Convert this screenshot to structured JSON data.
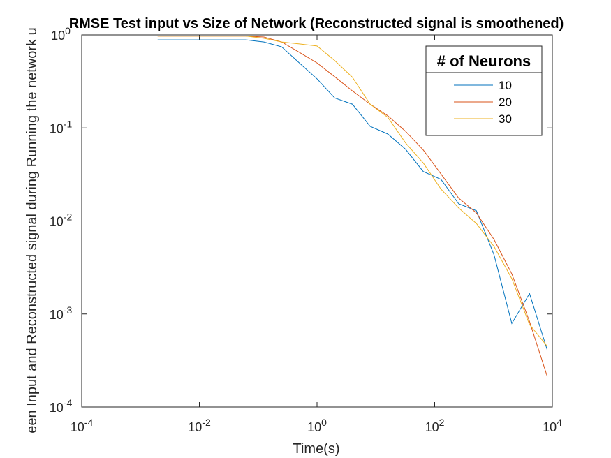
{
  "chart_data": {
    "type": "line",
    "title": "RMSE Test input vs Size of Network (Reconstructed signal is smoothened)",
    "xlabel": "Time(s)",
    "ylabel": "een Input and Reconstructed signal during Running the network u",
    "xscale": "log",
    "yscale": "log",
    "x": [
      0.001953125,
      0.00390625,
      0.0078125,
      0.015625,
      0.03125,
      0.0625,
      0.125,
      0.25,
      0.5,
      1,
      2,
      4,
      8,
      16,
      32,
      64,
      128,
      256,
      512,
      1024,
      2048,
      4096,
      8192
    ],
    "series": [
      {
        "name": "10",
        "color": "#0072BD",
        "values": [
          0.885,
          0.885,
          0.885,
          0.885,
          0.885,
          0.885,
          0.84,
          0.745,
          0.5,
          0.337,
          0.21,
          0.18,
          0.104,
          0.086,
          0.059,
          0.034,
          0.028,
          0.0153,
          0.0129,
          0.0043,
          0.00079,
          0.00166,
          0.00041
        ]
      },
      {
        "name": "20",
        "color": "#D95319",
        "values": [
          0.97,
          0.97,
          0.97,
          0.97,
          0.97,
          0.97,
          0.95,
          0.84,
          0.65,
          0.5,
          0.355,
          0.25,
          0.18,
          0.135,
          0.092,
          0.058,
          0.032,
          0.0176,
          0.0122,
          0.0063,
          0.0027,
          0.00083,
          0.000213
        ]
      },
      {
        "name": "30",
        "color": "#EDB120",
        "values": [
          0.97,
          0.97,
          0.97,
          0.97,
          0.97,
          0.97,
          0.92,
          0.84,
          0.8,
          0.76,
          0.53,
          0.35,
          0.18,
          0.13,
          0.069,
          0.042,
          0.022,
          0.0138,
          0.0094,
          0.0053,
          0.0024,
          0.00077,
          0.00045
        ]
      }
    ],
    "xlim": [
      0.0001,
      10000
    ],
    "xticks": [
      {
        "value": 0.0001,
        "label": "10^-4"
      },
      {
        "value": 0.01,
        "label": "10^-2"
      },
      {
        "value": 1,
        "label": "10^0"
      },
      {
        "value": 100,
        "label": "10^2"
      },
      {
        "value": 10000,
        "label": "10^4"
      }
    ],
    "ylim": [
      0.0001,
      1
    ],
    "yticks": [
      {
        "value": 0.0001,
        "label": "10^-4"
      },
      {
        "value": 0.001,
        "label": "10^-3"
      },
      {
        "value": 0.01,
        "label": "10^-2"
      },
      {
        "value": 0.1,
        "label": "10^-1"
      },
      {
        "value": 1,
        "label": "10^0"
      }
    ],
    "legend_title": "# of Neurons",
    "legend_position": "northeast",
    "grid": false
  }
}
